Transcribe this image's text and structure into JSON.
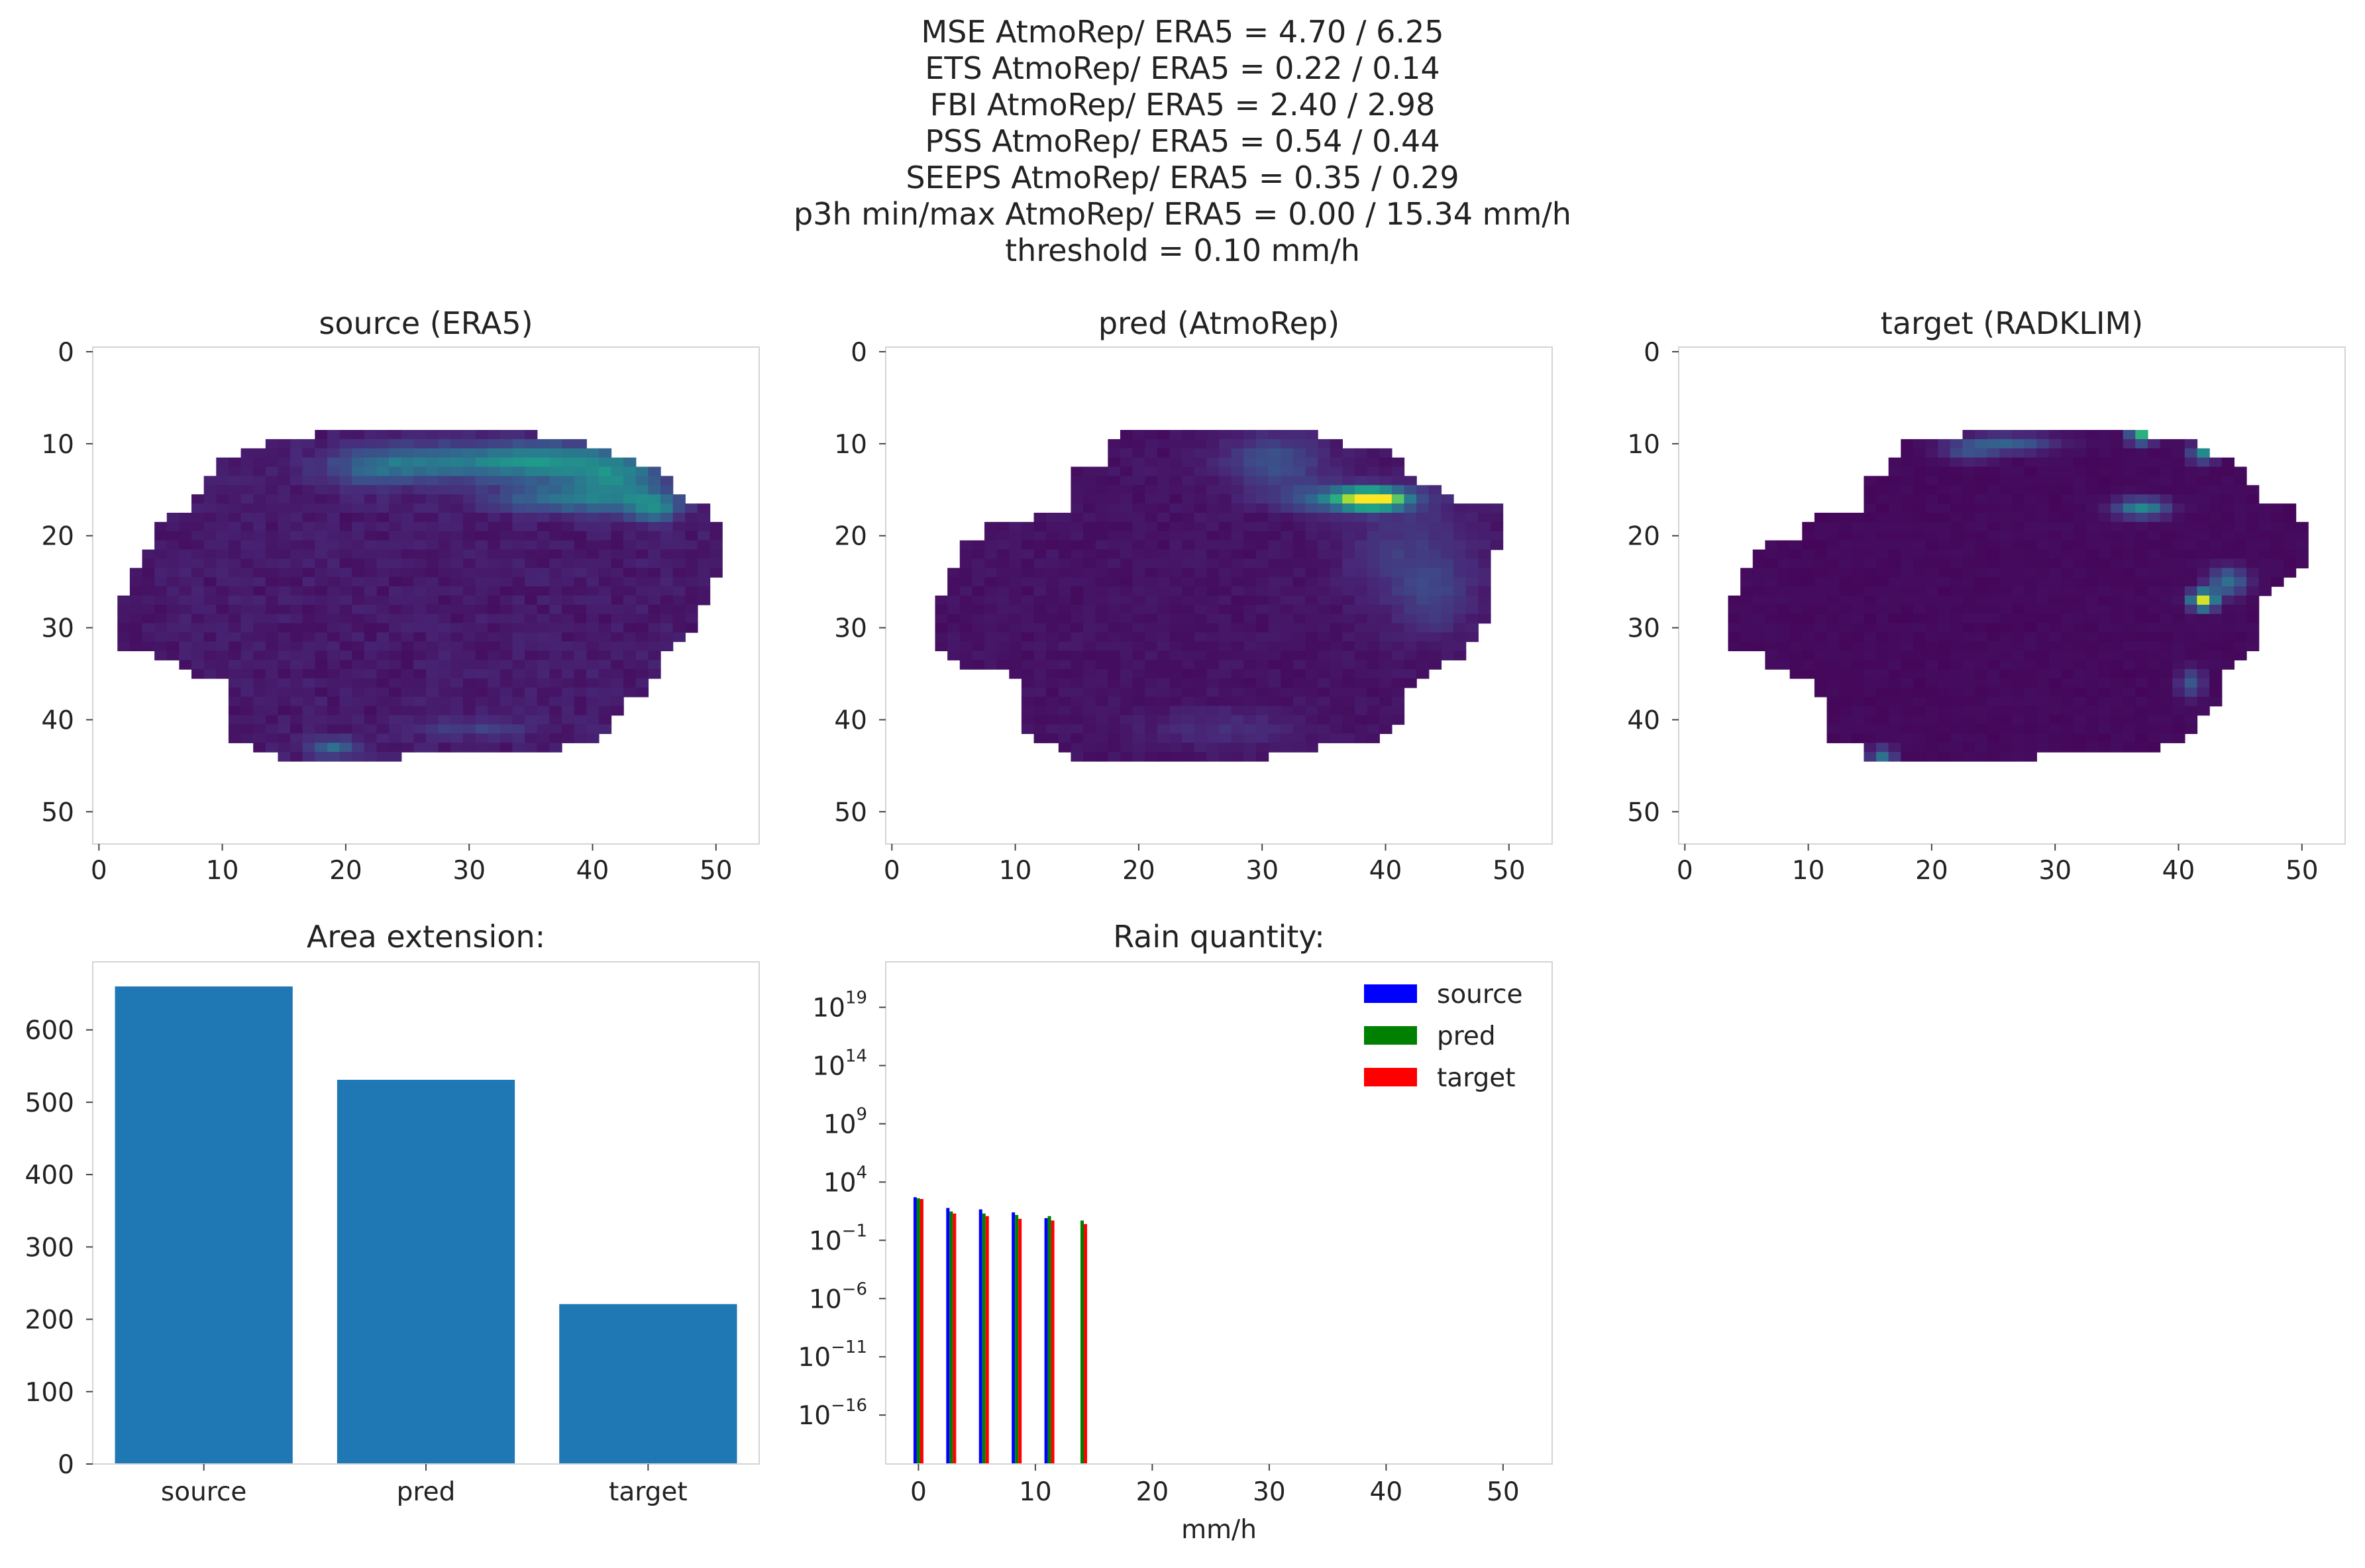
{
  "suptitle_lines": [
    "MSE AtmoRep/ ERA5 = 4.70 / 6.25",
    "ETS AtmoRep/ ERA5 = 0.22 / 0.14",
    "FBI AtmoRep/ ERA5 = 2.40 / 2.98",
    "PSS AtmoRep/ ERA5 = 0.54 / 0.44",
    "SEEPS AtmoRep/ ERA5 = 0.35 / 0.29",
    "p3h min/max AtmoRep/ ERA5 = 0.00 / 15.34 mm/h",
    "threshold = 0.10 mm/h"
  ],
  "chart_data": [
    {
      "type": "heatmap",
      "title": "source (ERA5)",
      "xlabel": "",
      "ylabel": "",
      "xticks": [
        0,
        10,
        20,
        30,
        40,
        50
      ],
      "yticks": [
        0,
        10,
        20,
        30,
        40,
        50
      ],
      "xlim": [
        -0.5,
        53.5
      ],
      "ylim": [
        53.5,
        -0.5
      ],
      "colormap": "viridis",
      "grid": false
    },
    {
      "type": "heatmap",
      "title": "pred (AtmoRep)",
      "xlabel": "",
      "ylabel": "",
      "xticks": [
        0,
        10,
        20,
        30,
        40,
        50
      ],
      "yticks": [
        0,
        10,
        20,
        30,
        40,
        50
      ],
      "xlim": [
        -0.5,
        53.5
      ],
      "ylim": [
        53.5,
        -0.5
      ],
      "colormap": "viridis",
      "grid": false
    },
    {
      "type": "heatmap",
      "title": "target (RADKLIM)",
      "xlabel": "",
      "ylabel": "",
      "xticks": [
        0,
        10,
        20,
        30,
        40,
        50
      ],
      "yticks": [
        0,
        10,
        20,
        30,
        40,
        50
      ],
      "xlim": [
        -0.5,
        53.5
      ],
      "ylim": [
        53.5,
        -0.5
      ],
      "colormap": "viridis",
      "grid": false
    },
    {
      "type": "bar",
      "title": "Area extension:",
      "categories": [
        "source",
        "pred",
        "target"
      ],
      "values": [
        660,
        531,
        221
      ],
      "yticks": [
        0,
        100,
        200,
        300,
        400,
        500,
        600
      ],
      "ylim": [
        0,
        694
      ],
      "color": "#1f77b4",
      "xlabel": "",
      "ylabel": ""
    },
    {
      "type": "bar",
      "title": "Rain quantity:",
      "xlabel": "mm/h",
      "ylabel": "",
      "yscale": "log",
      "x": [
        0,
        2.8,
        5.6,
        8.4,
        11.2,
        14.0
      ],
      "series": [
        {
          "name": "source",
          "color": "#0000ff",
          "values": [
            500,
            60,
            45,
            25,
            8,
            0
          ]
        },
        {
          "name": "pred",
          "color": "#008000",
          "values": [
            400,
            30,
            20,
            15,
            12,
            5
          ]
        },
        {
          "name": "target",
          "color": "#ff0000",
          "values": [
            350,
            20,
            12,
            7,
            5,
            2.5
          ]
        }
      ],
      "xticks": [
        0,
        10,
        20,
        30,
        40,
        50
      ],
      "xlim": [
        -2.8,
        54.2
      ],
      "yticks_exponents": [
        -16,
        -11,
        -6,
        -1,
        4,
        9,
        14,
        19
      ],
      "ylim_log10": [
        -20.2,
        22.9
      ],
      "legend_position": "upper right",
      "grid": false
    }
  ]
}
